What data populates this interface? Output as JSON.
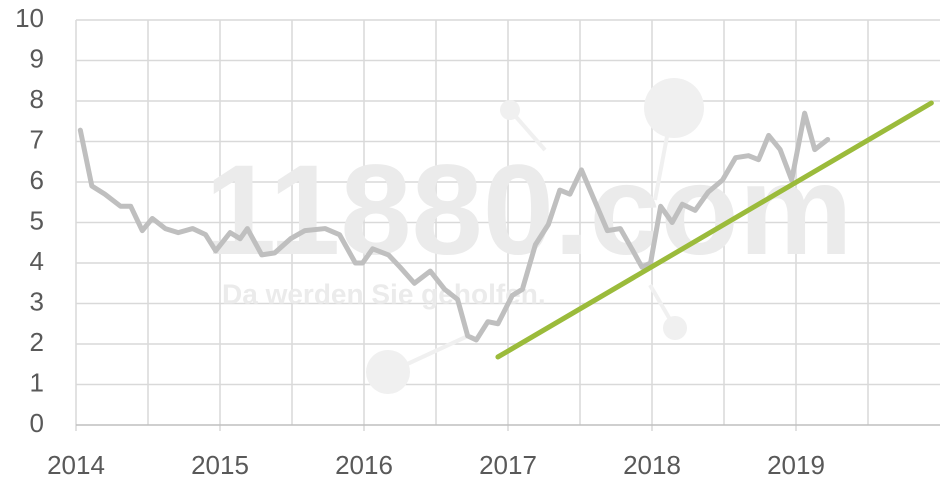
{
  "chart_data": {
    "type": "line",
    "watermark": "11880.com",
    "watermark_slogan": "Da werden Sie geholfen.",
    "xlim": [
      2014,
      2020
    ],
    "xticks": [
      2014,
      2015,
      2016,
      2017,
      2018,
      2019
    ],
    "xgrid": [
      2014.5,
      2015.5,
      2016.5,
      2017.5,
      2018.5,
      2019.5
    ],
    "ylim": [
      0,
      10
    ],
    "yticks": [
      0,
      1,
      2,
      3,
      4,
      5,
      6,
      7,
      8,
      9,
      10
    ],
    "grid": true,
    "series": [
      {
        "color": "#bfbfbf",
        "x": [
          2014.03,
          2014.11,
          2014.2,
          2014.31,
          2014.38,
          2014.46,
          2014.53,
          2014.62,
          2014.71,
          2014.81,
          2014.9,
          2014.97,
          2015.07,
          2015.14,
          2015.19,
          2015.29,
          2015.38,
          2015.49,
          2015.59,
          2015.73,
          2015.83,
          2015.94,
          2015.99,
          2016.06,
          2016.17,
          2016.25,
          2016.35,
          2016.46,
          2016.56,
          2016.65,
          2016.72,
          2016.78,
          2016.86,
          2016.93,
          2017.03,
          2017.1,
          2017.19,
          2017.28,
          2017.36,
          2017.43,
          2017.51,
          2017.6,
          2017.69,
          2017.78,
          2017.86,
          2017.93,
          2017.99,
          2018.06,
          2018.14,
          2018.21,
          2018.3,
          2018.39,
          2018.49,
          2018.58,
          2018.67,
          2018.74,
          2018.81,
          2018.89,
          2018.97,
          2019.06,
          2019.13,
          2019.22
        ],
        "values": [
          7.28,
          5.9,
          5.7,
          5.4,
          5.4,
          4.8,
          5.1,
          4.85,
          4.75,
          4.85,
          4.7,
          4.3,
          4.75,
          4.6,
          4.85,
          4.2,
          4.25,
          4.6,
          4.8,
          4.85,
          4.7,
          4.0,
          4.0,
          4.35,
          4.2,
          3.9,
          3.5,
          3.8,
          3.35,
          3.1,
          2.2,
          2.1,
          2.55,
          2.5,
          3.2,
          3.35,
          4.45,
          4.95,
          5.8,
          5.7,
          6.3,
          5.55,
          4.8,
          4.85,
          4.35,
          3.9,
          4.0,
          5.4,
          5.0,
          5.45,
          5.3,
          5.75,
          6.05,
          6.6,
          6.65,
          6.55,
          7.15,
          6.8,
          6.05,
          7.7,
          6.8,
          7.05
        ]
      },
      {
        "color": "#9bbb3b",
        "x": [
          2016.93,
          2019.94
        ],
        "values": [
          1.68,
          7.95
        ]
      }
    ]
  }
}
